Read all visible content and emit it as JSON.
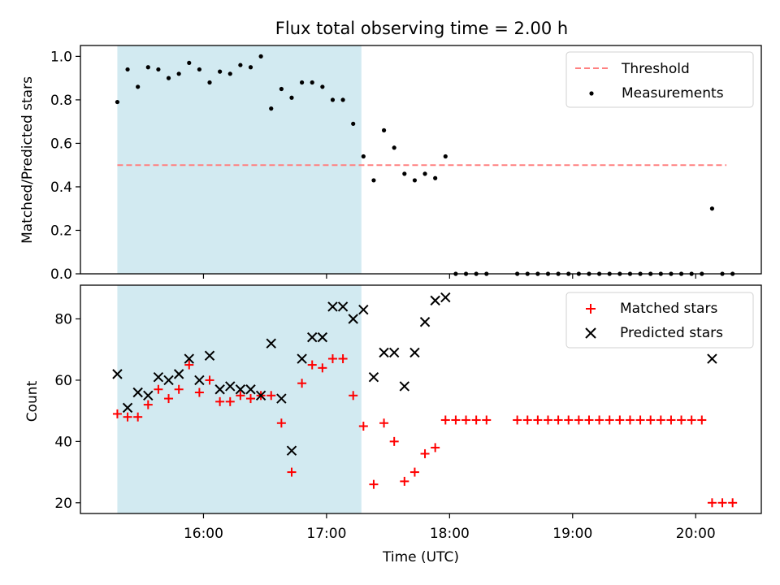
{
  "chart_data": [
    {
      "type": "scatter",
      "title": "Flux total observing time = 2.00 h",
      "xlabel": "",
      "ylabel": "Matched/Predicted stars",
      "ylim": [
        0.0,
        1.05
      ],
      "yticks": [
        "0.0",
        "0.2",
        "0.4",
        "0.6",
        "0.8",
        "1.0"
      ],
      "yticks_values": [
        0.0,
        0.2,
        0.4,
        0.6,
        0.8,
        1.0
      ],
      "shaded_region": {
        "x0": "15:18",
        "x1": "17:17",
        "color": "#add8e6"
      },
      "legend_position": "top-right",
      "threshold": {
        "name": "Threshold",
        "value": 0.5,
        "x0": "15:18",
        "x1": "20:15",
        "color": "#ff8080"
      },
      "series": [
        {
          "name": "Measurements",
          "color": "#000000",
          "x": [
            "15:18",
            "15:23",
            "15:28",
            "15:33",
            "15:38",
            "15:43",
            "15:48",
            "15:53",
            "15:58",
            "16:03",
            "16:08",
            "16:13",
            "16:18",
            "16:23",
            "16:28",
            "16:33",
            "16:38",
            "16:43",
            "16:48",
            "16:53",
            "16:58",
            "17:03",
            "17:08",
            "17:13",
            "17:18",
            "17:23",
            "17:28",
            "17:33",
            "17:38",
            "17:43",
            "17:48",
            "17:53",
            "17:58",
            "18:03",
            "18:08",
            "18:13",
            "18:18",
            "18:33",
            "18:38",
            "18:43",
            "18:48",
            "18:53",
            "18:58",
            "19:03",
            "19:08",
            "19:13",
            "19:18",
            "19:23",
            "19:28",
            "19:33",
            "19:38",
            "19:43",
            "19:48",
            "19:53",
            "19:58",
            "20:03",
            "20:08",
            "20:13",
            "20:18"
          ],
          "y": [
            0.79,
            0.94,
            0.86,
            0.95,
            0.94,
            0.9,
            0.92,
            0.97,
            0.94,
            0.88,
            0.93,
            0.92,
            0.96,
            0.95,
            1.0,
            0.76,
            0.85,
            0.81,
            0.88,
            0.88,
            0.86,
            0.8,
            0.8,
            0.69,
            0.54,
            0.43,
            0.66,
            0.58,
            0.46,
            0.43,
            0.46,
            0.44,
            0.54,
            0.0,
            0.0,
            0.0,
            0.0,
            0.0,
            0.0,
            0.0,
            0.0,
            0.0,
            0.0,
            0.0,
            0.0,
            0.0,
            0.0,
            0.0,
            0.0,
            0.0,
            0.0,
            0.0,
            0.0,
            0.0,
            0.0,
            0.0,
            0.3,
            0.0,
            0.0
          ]
        }
      ]
    },
    {
      "type": "scatter",
      "title": "",
      "xlabel": "Time (UTC)",
      "ylabel": "Count",
      "xlim": [
        "15:00",
        "20:32"
      ],
      "xticks": [
        "16:00",
        "17:00",
        "18:00",
        "19:00",
        "20:00"
      ],
      "ylim": [
        16.5,
        91
      ],
      "yticks": [
        "20",
        "40",
        "60",
        "80"
      ],
      "yticks_values": [
        20,
        40,
        60,
        80
      ],
      "shaded_region": {
        "x0": "15:18",
        "x1": "17:17",
        "color": "#add8e6"
      },
      "legend_position": "top-right",
      "series": [
        {
          "name": "Matched stars",
          "marker": "+",
          "color": "#ff0000",
          "x": [
            "15:18",
            "15:23",
            "15:28",
            "15:33",
            "15:38",
            "15:43",
            "15:48",
            "15:53",
            "15:58",
            "16:03",
            "16:08",
            "16:13",
            "16:18",
            "16:23",
            "16:28",
            "16:33",
            "16:38",
            "16:43",
            "16:48",
            "16:53",
            "16:58",
            "17:03",
            "17:08",
            "17:13",
            "17:18",
            "17:23",
            "17:28",
            "17:33",
            "17:38",
            "17:43",
            "17:48",
            "17:53",
            "17:58",
            "18:03",
            "18:08",
            "18:13",
            "18:18",
            "18:33",
            "18:38",
            "18:43",
            "18:48",
            "18:53",
            "18:58",
            "19:03",
            "19:08",
            "19:13",
            "19:18",
            "19:23",
            "19:28",
            "19:33",
            "19:38",
            "19:43",
            "19:48",
            "19:53",
            "19:58",
            "20:03",
            "20:08",
            "20:13",
            "20:18"
          ],
          "y": [
            49,
            48,
            48,
            52,
            57,
            54,
            57,
            65,
            56,
            60,
            53,
            53,
            55,
            54,
            55,
            55,
            46,
            30,
            59,
            65,
            64,
            67,
            67,
            55,
            45,
            26,
            46,
            40,
            27,
            30,
            36,
            38,
            47,
            47,
            47,
            47,
            47,
            47,
            47,
            47,
            47,
            47,
            47,
            47,
            47,
            47,
            47,
            47,
            47,
            47,
            47,
            47,
            47,
            47,
            47,
            47,
            20,
            20,
            20
          ]
        },
        {
          "name": "Predicted stars",
          "marker": "x",
          "color": "#000000",
          "x": [
            "15:18",
            "15:23",
            "15:28",
            "15:33",
            "15:38",
            "15:43",
            "15:48",
            "15:53",
            "15:58",
            "16:03",
            "16:08",
            "16:13",
            "16:18",
            "16:23",
            "16:28",
            "16:33",
            "16:38",
            "16:43",
            "16:48",
            "16:53",
            "16:58",
            "17:03",
            "17:08",
            "17:13",
            "17:18",
            "17:23",
            "17:28",
            "17:33",
            "17:38",
            "17:43",
            "17:48",
            "17:53",
            "17:58",
            "20:08"
          ],
          "y": [
            62,
            51,
            56,
            55,
            61,
            60,
            62,
            67,
            60,
            68,
            57,
            58,
            57,
            57,
            55,
            72,
            54,
            37,
            67,
            74,
            74,
            84,
            84,
            80,
            83,
            61,
            69,
            69,
            58,
            69,
            79,
            86,
            87,
            67
          ]
        }
      ]
    }
  ]
}
